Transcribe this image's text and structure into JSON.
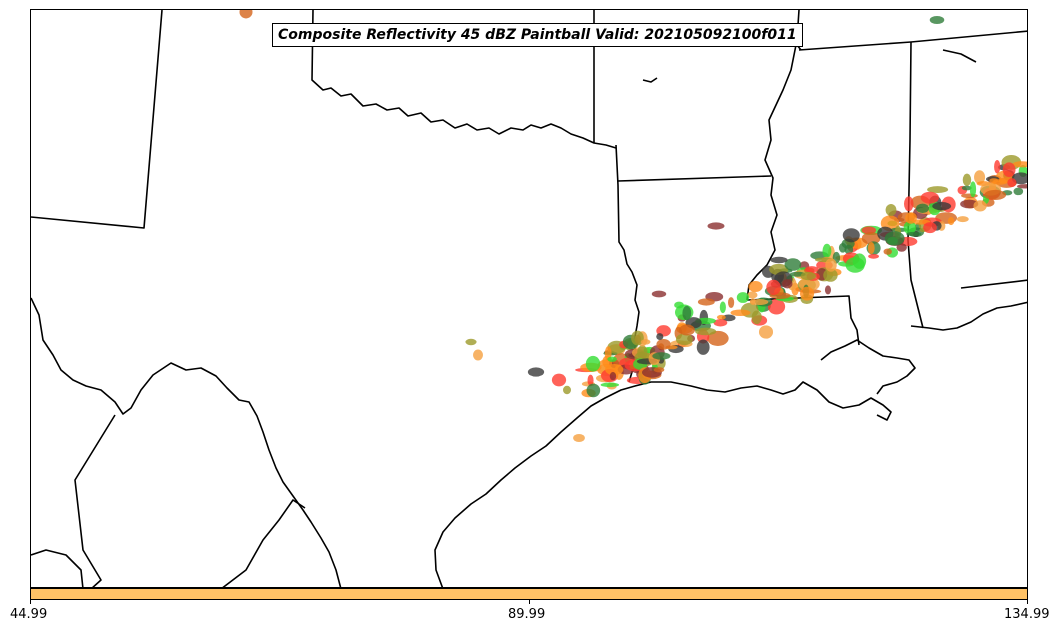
{
  "title": "Composite Reflectivity 45 dBZ Paintball Valid: 202105092100f011",
  "colorbar": {
    "color": "#ffc266",
    "ticks": [
      "44.99",
      "89.99",
      "134.99"
    ]
  },
  "member_colors": [
    "#ff3b30",
    "#ff8c1a",
    "#33dd33",
    "#2f7d3a",
    "#8b2f2f",
    "#3a3a3a",
    "#9c9a2b",
    "#d4641a",
    "#f5a040"
  ]
}
